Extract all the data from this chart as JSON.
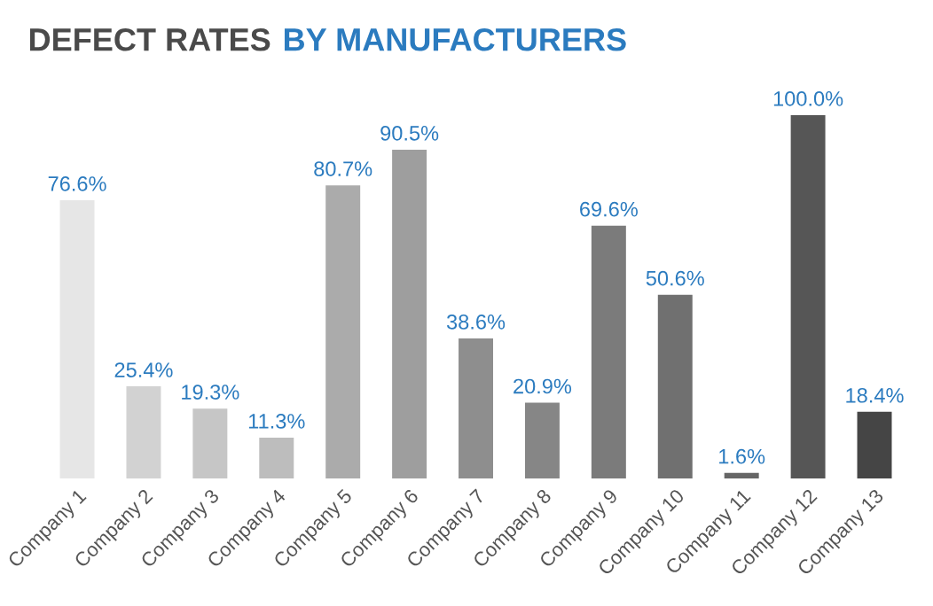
{
  "chart_data": {
    "type": "bar",
    "title": "DEFECT RATES",
    "subtitle": "BY MANUFACTURERS",
    "categories": [
      "Company 1",
      "Company 2",
      "Company 3",
      "Company 4",
      "Company 5",
      "Company 6",
      "Company 7",
      "Company 8",
      "Company 9",
      "Company 10",
      "Company 11",
      "Company 12",
      "Company 13"
    ],
    "values": [
      76.6,
      25.4,
      19.3,
      11.3,
      80.7,
      90.5,
      38.6,
      20.9,
      69.6,
      50.6,
      1.6,
      100.0,
      18.4
    ],
    "value_labels": [
      "76.6%",
      "25.4%",
      "19.3%",
      "11.3%",
      "80.7%",
      "90.5%",
      "38.6%",
      "20.9%",
      "69.6%",
      "50.6%",
      "1.6%",
      "100.0%",
      "18.4%"
    ],
    "colors": [
      "#e6e6e6",
      "#d2d2d2",
      "#c6c6c6",
      "#bdbdbd",
      "#ababab",
      "#9e9e9e",
      "#8e8e8e",
      "#868686",
      "#7b7b7b",
      "#707070",
      "#666666",
      "#565656",
      "#454545"
    ],
    "grid": false,
    "legend": false
  }
}
